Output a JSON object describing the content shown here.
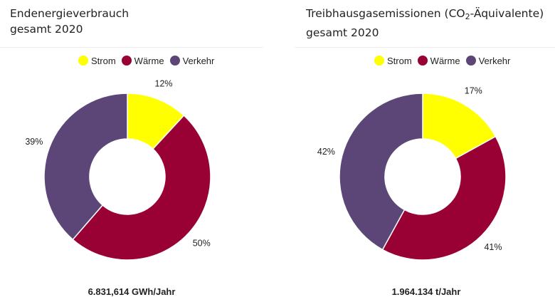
{
  "colors": {
    "strom": "#ffff00",
    "waerme": "#990033",
    "verkehr": "#5c4677"
  },
  "chart_data": [
    {
      "type": "pie",
      "donut": true,
      "title_line1": "Endenergieverbrauch",
      "title_line2": "gesamt 2020",
      "legend": [
        "Strom",
        "Wärme",
        "Verkehr"
      ],
      "categories": [
        "Strom",
        "Wärme",
        "Verkehr"
      ],
      "values": [
        12,
        50,
        39
      ],
      "labels": [
        "12%",
        "50%",
        "39%"
      ],
      "total_label": "6.831,614 GWh/Jahr",
      "legend_position": "top"
    },
    {
      "type": "pie",
      "donut": true,
      "title_main": "Treibhausgasemissionen (CO",
      "title_sub": "2",
      "title_rest": "-Äquivalente)",
      "title_line2": "gesamt 2020",
      "legend": [
        "Strom",
        "Wärme",
        "Verkehr"
      ],
      "categories": [
        "Strom",
        "Wärme",
        "Verkehr"
      ],
      "values": [
        17,
        41,
        42
      ],
      "labels": [
        "17%",
        "41%",
        "42%"
      ],
      "total_label": "1.964.134 t/Jahr",
      "legend_position": "top"
    }
  ]
}
